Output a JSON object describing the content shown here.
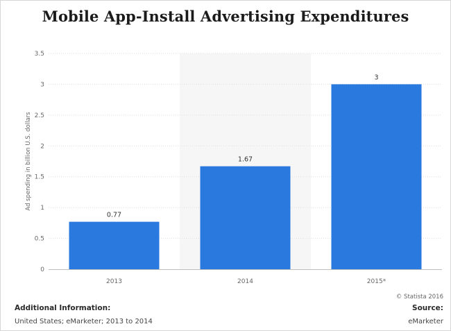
{
  "chart_data": {
    "type": "bar",
    "title": "Mobile App-Install Advertising Expenditures",
    "xlabel": "",
    "ylabel": "Ad spending in billion U.S. dollars",
    "categories": [
      "2013",
      "2014",
      "2015*"
    ],
    "values": [
      0.77,
      1.67,
      3
    ],
    "value_labels": [
      "0.77",
      "1.67",
      "3"
    ],
    "ylim": [
      0,
      3.5
    ],
    "yticks": [
      0,
      0.5,
      1,
      1.5,
      2,
      2.5,
      3,
      3.5
    ],
    "ytick_labels": [
      "0",
      "0.5",
      "1",
      "1.5",
      "2",
      "2.5",
      "3",
      "3.5"
    ],
    "highlighted_category": "2014",
    "grid": true,
    "bar_color": "#2a79de",
    "highlight_band_color": "#f6f6f6"
  },
  "footer": {
    "credit": "© Statista 2016",
    "additional_info_title": "Additional Information:",
    "additional_info_text": "United States; eMarketer; 2013 to 2014",
    "source_title": "Source:",
    "source_text": "eMarketer"
  }
}
